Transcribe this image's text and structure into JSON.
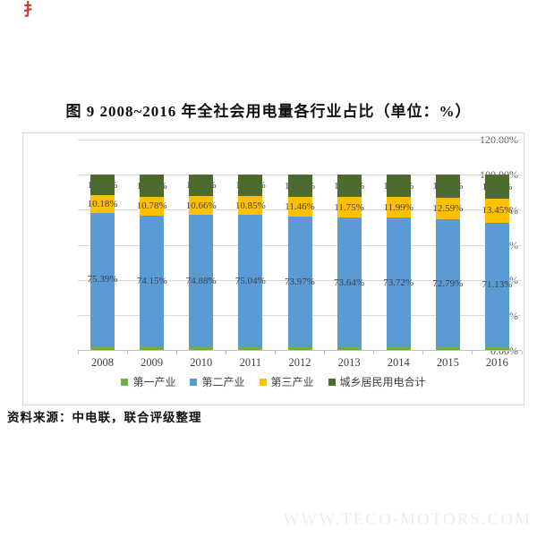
{
  "page": {
    "stamp": "扌",
    "title": "图 9  2008~2016 年全社会用电量各行业占比（单位：%）",
    "source_note": "资料来源：中电联，联合评级整理",
    "watermark": "WWW.TECO-MOTORS.COM"
  },
  "chart_data": {
    "type": "bar",
    "stacked": true,
    "title": "图 9  2008~2016 年全社会用电量各行业占比（单位：%）",
    "xlabel": "",
    "ylabel": "",
    "categories": [
      "2008",
      "2009",
      "2010",
      "2011",
      "2012",
      "2013",
      "2014",
      "2015",
      "2016"
    ],
    "series": [
      {
        "name": "第一产业",
        "color": "#70ad47",
        "values": [
          2.8,
          2.58,
          2.35,
          2.16,
          2.06,
          1.9,
          1.82,
          1.82,
          1.81
        ],
        "labels": null,
        "label_layer": "none"
      },
      {
        "name": "第二产业",
        "color": "#5b9bd5",
        "values": [
          75.39,
          74.15,
          74.88,
          75.04,
          73.97,
          73.64,
          73.72,
          72.79,
          71.13
        ],
        "labels": [
          "75.39%",
          "74.15%",
          "74.88%",
          "75.04%",
          "73.97%",
          "73.64%",
          "73.72%",
          "72.79%",
          "71.13%"
        ],
        "label_layer": "front"
      },
      {
        "name": "第三产业",
        "color": "#ffc000",
        "values": [
          10.18,
          10.78,
          10.66,
          10.85,
          11.46,
          11.75,
          11.99,
          12.59,
          13.45
        ],
        "labels": [
          "10.18%",
          "10.78%",
          "10.66%",
          "10.85%",
          "11.46%",
          "11.75%",
          "11.99%",
          "12.59%",
          "13.45%"
        ],
        "label_layer": "front"
      },
      {
        "name": "城乡居民用电合计",
        "color": "#4e6b2f",
        "values": [
          11.63,
          12.49,
          12.11,
          11.95,
          12.51,
          12.71,
          12.47,
          12.8,
          13.61
        ],
        "labels": [
          "11.63%",
          "12.49%",
          "12.11%",
          "11.95%",
          "12.51%",
          "12.71%",
          "12.47%",
          "12.80%",
          "13.61%"
        ],
        "label_layer": "behind"
      }
    ],
    "ylim": [
      0,
      120
    ],
    "ytick_values": [
      0,
      20,
      40,
      60,
      80,
      100,
      120
    ],
    "ytick_labels": [
      "0.00%",
      "20.00%",
      "40.00%",
      "60.00%",
      "80.00%",
      "100.00%",
      "120.00%"
    ],
    "grid": true,
    "legend_position": "bottom"
  }
}
